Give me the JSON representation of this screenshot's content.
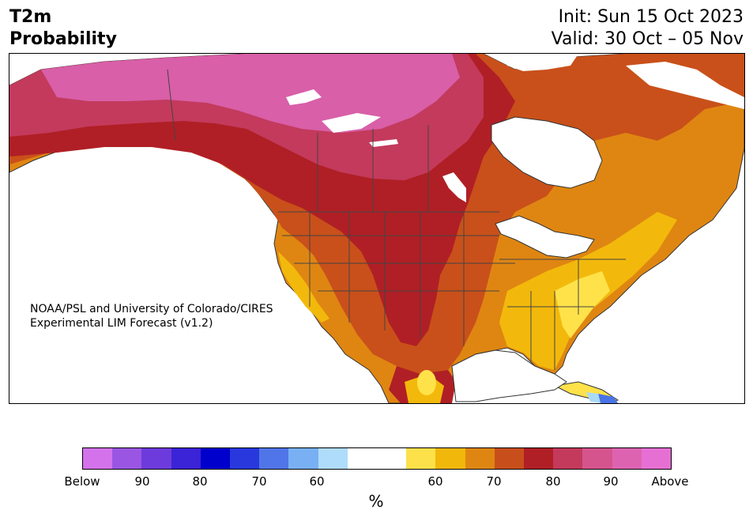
{
  "header": {
    "variable": "T2m",
    "product": "Probability",
    "init": "Init: Sun 15 Oct 2023",
    "valid": "Valid: 30 Oct – 05 Nov"
  },
  "credit": {
    "line1": "NOAA/PSL and University of Colorado/CIRES",
    "line2": "Experimental LIM Forecast (v1.2)"
  },
  "map": {
    "region": "North America",
    "colors": {
      "above_90": "#e66fd4",
      "above_85": "#d85fa8",
      "above_80": "#c33a5c",
      "above_75": "#b01f25",
      "above_70": "#c9501a",
      "above_65": "#df8612",
      "above_60": "#f2b90c",
      "above_55": "#ffe24a",
      "neutral": "#ffffff",
      "below_60": "#abdaf7",
      "below_65": "#74aef0",
      "below_70": "#4a73e8",
      "below_75": "#2b3ddb"
    }
  },
  "colorbar": {
    "colors": [
      "#d472eb",
      "#9a56e3",
      "#6d3bdc",
      "#3b23d7",
      "#0000cd",
      "#2838dc",
      "#5075e8",
      "#78b0f3",
      "#afdcfa",
      "#ffffff",
      "#ffffff",
      "#fde14a",
      "#f1b70b",
      "#df8612",
      "#c84f1b",
      "#b01f25",
      "#c33a5c",
      "#d6548d",
      "#dd63b1",
      "#e66fd4"
    ],
    "ticks": [
      "Below",
      "90",
      "80",
      "70",
      "60",
      "60",
      "70",
      "80",
      "90",
      "Above"
    ],
    "unit": "%"
  }
}
